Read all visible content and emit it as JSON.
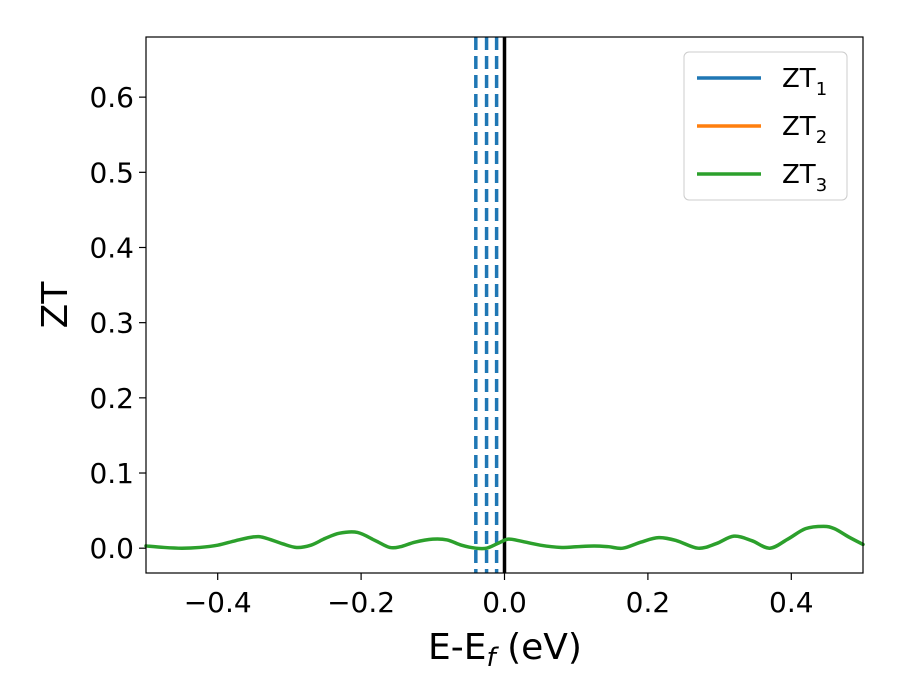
{
  "chart_data": {
    "type": "line",
    "title": "",
    "xlabel": {
      "main": "E-E",
      "sub": "f",
      "suffix": " (eV)"
    },
    "ylabel": "ZT",
    "xlim": [
      -0.5,
      0.5
    ],
    "ylim": [
      -0.033,
      0.68
    ],
    "xticks": [
      {
        "value": -0.4,
        "label": "−0.4"
      },
      {
        "value": -0.2,
        "label": "−0.2"
      },
      {
        "value": 0.0,
        "label": "0.0"
      },
      {
        "value": 0.2,
        "label": "0.2"
      },
      {
        "value": 0.4,
        "label": "0.4"
      }
    ],
    "yticks": [
      {
        "value": 0.0,
        "label": "0.0"
      },
      {
        "value": 0.1,
        "label": "0.1"
      },
      {
        "value": 0.2,
        "label": "0.2"
      },
      {
        "value": 0.3,
        "label": "0.3"
      },
      {
        "value": 0.4,
        "label": "0.4"
      },
      {
        "value": 0.5,
        "label": "0.5"
      },
      {
        "value": 0.6,
        "label": "0.6"
      }
    ],
    "grid": false,
    "legend_position": "top-right",
    "legend": [
      {
        "main": "ZT",
        "sub": "1",
        "color": "#1f77b4"
      },
      {
        "main": "ZT",
        "sub": "2",
        "color": "#ff7f0e"
      },
      {
        "main": "ZT",
        "sub": "3",
        "color": "#2ca02c"
      }
    ],
    "series": [
      {
        "color": "#2ca02c",
        "x": [
          -0.5,
          -0.475,
          -0.45,
          -0.425,
          -0.4,
          -0.375,
          -0.35,
          -0.335,
          -0.31,
          -0.29,
          -0.27,
          -0.25,
          -0.23,
          -0.205,
          -0.18,
          -0.16,
          -0.145,
          -0.125,
          -0.1,
          -0.08,
          -0.06,
          -0.04,
          -0.025,
          -0.01,
          0.005,
          0.02,
          0.05,
          0.08,
          0.1,
          0.125,
          0.145,
          0.165,
          0.19,
          0.215,
          0.24,
          0.27,
          0.295,
          0.32,
          0.345,
          0.37,
          0.395,
          0.42,
          0.445,
          0.46,
          0.48,
          0.5
        ],
        "y": [
          0.003,
          0.001,
          0.0,
          0.001,
          0.004,
          0.01,
          0.015,
          0.014,
          0.006,
          0.001,
          0.004,
          0.013,
          0.02,
          0.021,
          0.01,
          0.001,
          0.002,
          0.008,
          0.012,
          0.011,
          0.004,
          0.0,
          0.0,
          0.006,
          0.012,
          0.01,
          0.004,
          0.001,
          0.002,
          0.003,
          0.002,
          0.0,
          0.008,
          0.014,
          0.01,
          0.0,
          0.006,
          0.016,
          0.01,
          0.0,
          0.012,
          0.026,
          0.029,
          0.026,
          0.015,
          0.005
        ]
      },
      {
        "name": "vertical reference",
        "orientation": "vertical",
        "style": "solid",
        "color": "#000000",
        "x": [
          0.0
        ]
      },
      {
        "name": "band edges",
        "orientation": "vertical",
        "style": "dashed",
        "color": "#1f77b4",
        "x": [
          -0.04,
          -0.025,
          -0.011
        ]
      }
    ]
  }
}
